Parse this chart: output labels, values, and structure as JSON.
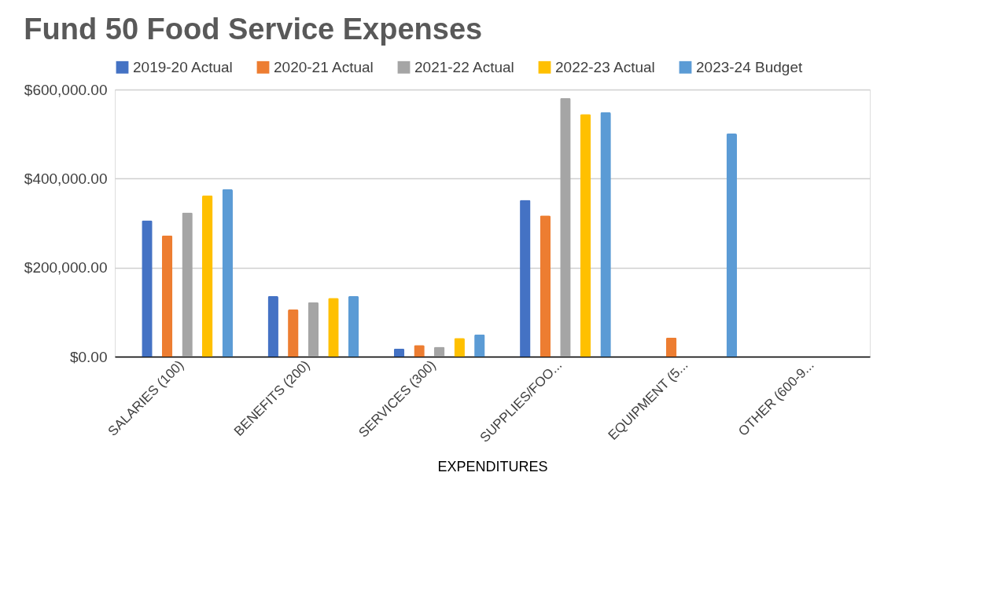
{
  "chart_data": {
    "type": "bar",
    "title": "Fund 50 Food Service Expenses",
    "xlabel": "EXPENDITURES",
    "categories": [
      "SALARIES (100)",
      "BENEFITS (200)",
      "SERVICES (300)",
      "SUPPLIES/FOO...",
      "EQUIPMENT (5...",
      "OTHER (600-9..."
    ],
    "series": [
      {
        "name": "2019-20 Actual",
        "color": "#4472c4",
        "values": [
          306000,
          136000,
          18000,
          352000,
          null,
          0
        ]
      },
      {
        "name": "2020-21 Actual",
        "color": "#ed7d31",
        "values": [
          272000,
          106000,
          26000,
          317000,
          43000,
          0
        ]
      },
      {
        "name": "2021-22 Actual",
        "color": "#a5a5a5",
        "values": [
          324000,
          122000,
          22000,
          581000,
          0,
          0
        ]
      },
      {
        "name": "2022-23 Actual",
        "color": "#ffc000",
        "values": [
          362000,
          132000,
          42000,
          545000,
          0,
          null
        ]
      },
      {
        "name": "2023-24 Budget",
        "color": "#5b9bd5",
        "values": [
          376000,
          136000,
          50000,
          549000,
          501000,
          null
        ]
      }
    ],
    "ylim": [
      0,
      600000
    ],
    "yticks": [
      {
        "value": 0,
        "label": "$0.00"
      },
      {
        "value": 200000,
        "label": "$200,000.00"
      },
      {
        "value": 400000,
        "label": "$400,000.00"
      },
      {
        "value": 600000,
        "label": "$600,000.00"
      }
    ],
    "grid": "y",
    "legend": "top"
  }
}
